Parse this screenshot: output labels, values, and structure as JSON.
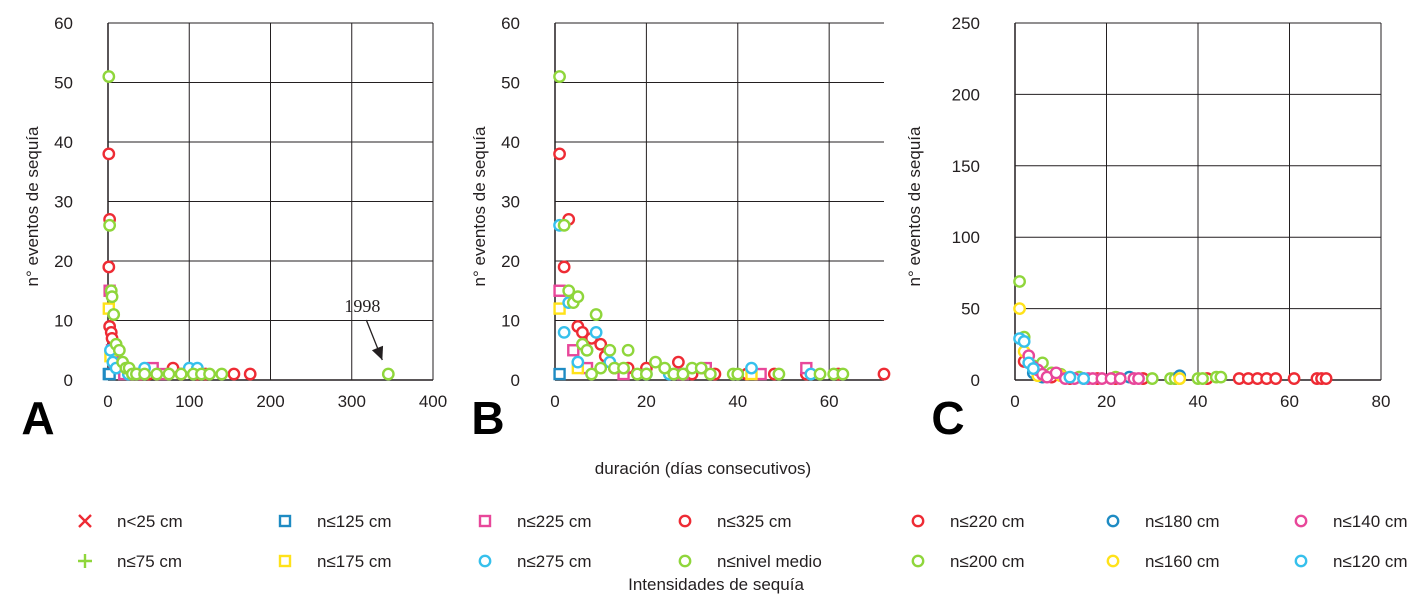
{
  "figure": {
    "x_axis_title": "duración (días consecutivos)",
    "legend_title": "Intensidades de sequía"
  },
  "legend": [
    {
      "label": "n<25 cm",
      "marker": "x",
      "color": "#ee2b34"
    },
    {
      "label": "n≤75 cm",
      "marker": "plus",
      "color": "#8fd63b"
    },
    {
      "label": "n≤125 cm",
      "marker": "square",
      "color": "#1e8bc3"
    },
    {
      "label": "n≤175 cm",
      "marker": "square",
      "color": "#ffe21a"
    },
    {
      "label": "n≤225 cm",
      "marker": "square",
      "color": "#e8479a"
    },
    {
      "label": "n≤275 cm",
      "marker": "circle",
      "color": "#36c0ec"
    },
    {
      "label": "n≤325 cm",
      "marker": "circle",
      "color": "#ee2b34"
    },
    {
      "label": "n≤nivel medio",
      "marker": "circle",
      "color": "#8fd63b"
    },
    {
      "label": "n≤220 cm",
      "marker": "circle",
      "color": "#ee2b34"
    },
    {
      "label": "n≤200 cm",
      "marker": "circle",
      "color": "#8fd63b"
    },
    {
      "label": "n≤180 cm",
      "marker": "circle",
      "color": "#1e8bc3"
    },
    {
      "label": "n≤160 cm",
      "marker": "circle",
      "color": "#ffe21a"
    },
    {
      "label": "n≤140 cm",
      "marker": "circle",
      "color": "#e8479a"
    },
    {
      "label": "n≤120 cm",
      "marker": "circle",
      "color": "#36c0ec"
    }
  ],
  "chart_data": [
    {
      "type": "scatter",
      "panel": "A",
      "xlabel": "",
      "ylabel": "n° eventos de sequía",
      "xlim": [
        0,
        400
      ],
      "ylim": [
        0,
        60
      ],
      "xticks": [
        0,
        100,
        200,
        300,
        400
      ],
      "yticks": [
        0,
        10,
        20,
        30,
        40,
        50,
        60
      ],
      "grid": true,
      "annotations": [
        {
          "text": "1998",
          "x": 345,
          "y": 1
        }
      ],
      "series": [
        {
          "name": "n≤325 cm",
          "marker": "circle",
          "color": "#ee2b34",
          "points": [
            [
              1,
              38
            ],
            [
              2,
              27
            ],
            [
              1,
              19
            ],
            [
              2,
              9
            ],
            [
              4,
              8
            ],
            [
              5,
              7
            ],
            [
              6,
              5
            ],
            [
              8,
              4
            ],
            [
              10,
              3
            ],
            [
              15,
              2
            ],
            [
              20,
              2
            ],
            [
              25,
              2
            ],
            [
              30,
              1
            ],
            [
              40,
              1
            ],
            [
              50,
              1
            ],
            [
              60,
              1
            ],
            [
              80,
              2
            ],
            [
              90,
              1
            ],
            [
              110,
              1
            ],
            [
              120,
              1
            ],
            [
              155,
              1
            ],
            [
              175,
              1
            ]
          ]
        },
        {
          "name": "n≤225 cm",
          "marker": "square",
          "color": "#e8479a",
          "points": [
            [
              2,
              15
            ],
            [
              5,
              5
            ],
            [
              8,
              3
            ],
            [
              12,
              2
            ],
            [
              20,
              1
            ],
            [
              35,
              1
            ],
            [
              55,
              2
            ],
            [
              70,
              1
            ]
          ]
        },
        {
          "name": "n≤125 cm",
          "marker": "square",
          "color": "#1e8bc3",
          "points": [
            [
              1,
              1
            ],
            [
              2,
              1
            ]
          ]
        },
        {
          "name": "n≤175 cm",
          "marker": "square",
          "color": "#ffe21a",
          "points": [
            [
              1,
              12
            ],
            [
              3,
              4
            ]
          ]
        },
        {
          "name": "n≤275 cm",
          "marker": "circle",
          "color": "#36c0ec",
          "points": [
            [
              3,
              5
            ],
            [
              6,
              3
            ],
            [
              10,
              2
            ],
            [
              25,
              1
            ],
            [
              45,
              2
            ],
            [
              100,
              2
            ],
            [
              110,
              2
            ]
          ]
        },
        {
          "name": "n≤nivel medio",
          "marker": "circle",
          "color": "#8fd63b",
          "points": [
            [
              1,
              51
            ],
            [
              2,
              26
            ],
            [
              4,
              15
            ],
            [
              5,
              14
            ],
            [
              7,
              11
            ],
            [
              10,
              6
            ],
            [
              14,
              5
            ],
            [
              18,
              3
            ],
            [
              22,
              2
            ],
            [
              26,
              2
            ],
            [
              30,
              1
            ],
            [
              35,
              1
            ],
            [
              45,
              1
            ],
            [
              60,
              1
            ],
            [
              75,
              1
            ],
            [
              90,
              1
            ],
            [
              105,
              1
            ],
            [
              115,
              1
            ],
            [
              125,
              1
            ],
            [
              140,
              1
            ],
            [
              345,
              1
            ]
          ]
        }
      ]
    },
    {
      "type": "scatter",
      "panel": "B",
      "xlabel": "",
      "ylabel": "n° eventos de sequía",
      "xlim": [
        0,
        72
      ],
      "ylim": [
        0,
        60
      ],
      "xticks": [
        0,
        20,
        40,
        60
      ],
      "yticks": [
        0,
        10,
        20,
        30,
        40,
        50,
        60
      ],
      "grid": true,
      "series": [
        {
          "name": "n≤325 cm",
          "marker": "circle",
          "color": "#ee2b34",
          "points": [
            [
              1,
              38
            ],
            [
              3,
              27
            ],
            [
              2,
              19
            ],
            [
              5,
              9
            ],
            [
              6,
              8
            ],
            [
              8,
              7
            ],
            [
              10,
              6
            ],
            [
              11,
              4
            ],
            [
              13,
              2
            ],
            [
              16,
              2
            ],
            [
              20,
              2
            ],
            [
              27,
              3
            ],
            [
              30,
              1
            ],
            [
              35,
              1
            ],
            [
              42,
              1
            ],
            [
              48,
              1
            ],
            [
              55,
              1
            ],
            [
              62,
              1
            ],
            [
              72,
              1
            ]
          ]
        },
        {
          "name": "n≤225 cm",
          "marker": "square",
          "color": "#e8479a",
          "points": [
            [
              1,
              15
            ],
            [
              4,
              5
            ],
            [
              7,
              2
            ],
            [
              15,
              1
            ],
            [
              28,
              1
            ],
            [
              33,
              2
            ],
            [
              45,
              1
            ],
            [
              55,
              2
            ]
          ]
        },
        {
          "name": "n≤125 cm",
          "marker": "square",
          "color": "#1e8bc3",
          "points": [
            [
              1,
              1
            ]
          ]
        },
        {
          "name": "n≤175 cm",
          "marker": "square",
          "color": "#ffe21a",
          "points": [
            [
              1,
              12
            ],
            [
              5,
              2
            ],
            [
              43,
              1
            ]
          ]
        },
        {
          "name": "n≤275 cm",
          "marker": "circle",
          "color": "#36c0ec",
          "points": [
            [
              1,
              26
            ],
            [
              2,
              8
            ],
            [
              3,
              13
            ],
            [
              5,
              3
            ],
            [
              7,
              5
            ],
            [
              9,
              8
            ],
            [
              12,
              3
            ],
            [
              20,
              1
            ],
            [
              25,
              1
            ],
            [
              43,
              2
            ],
            [
              56,
              1
            ]
          ]
        },
        {
          "name": "n≤nivel medio",
          "marker": "circle",
          "color": "#8fd63b",
          "points": [
            [
              1,
              51
            ],
            [
              2,
              26
            ],
            [
              3,
              15
            ],
            [
              4,
              13
            ],
            [
              5,
              14
            ],
            [
              6,
              6
            ],
            [
              7,
              5
            ],
            [
              8,
              1
            ],
            [
              9,
              11
            ],
            [
              10,
              2
            ],
            [
              12,
              5
            ],
            [
              13,
              2
            ],
            [
              15,
              2
            ],
            [
              16,
              5
            ],
            [
              18,
              1
            ],
            [
              20,
              1
            ],
            [
              22,
              3
            ],
            [
              24,
              2
            ],
            [
              26,
              1
            ],
            [
              28,
              1
            ],
            [
              30,
              2
            ],
            [
              32,
              2
            ],
            [
              34,
              1
            ],
            [
              39,
              1
            ],
            [
              40,
              1
            ],
            [
              49,
              1
            ],
            [
              58,
              1
            ],
            [
              61,
              1
            ],
            [
              63,
              1
            ]
          ]
        }
      ]
    },
    {
      "type": "scatter",
      "panel": "C",
      "xlabel": "",
      "ylabel": "n° eventos de sequía",
      "xlim": [
        0,
        80
      ],
      "ylim": [
        0,
        250
      ],
      "xticks": [
        0,
        20,
        40,
        60,
        80
      ],
      "yticks": [
        0,
        50,
        100,
        150,
        200,
        250
      ],
      "grid": true,
      "series": [
        {
          "name": "n≤220 cm",
          "marker": "circle",
          "color": "#ee2b34",
          "points": [
            [
              2,
              13
            ],
            [
              5,
              5
            ],
            [
              8,
              2
            ],
            [
              12,
              1
            ],
            [
              18,
              1
            ],
            [
              22,
              1
            ],
            [
              28,
              1
            ],
            [
              35,
              1
            ],
            [
              42,
              1
            ],
            [
              49,
              1
            ],
            [
              51,
              1
            ],
            [
              53,
              1
            ],
            [
              55,
              1
            ],
            [
              57,
              1
            ],
            [
              61,
              1
            ],
            [
              66,
              1
            ],
            [
              67,
              1
            ],
            [
              68,
              1
            ]
          ]
        },
        {
          "name": "n≤200 cm",
          "marker": "circle",
          "color": "#8fd63b",
          "points": [
            [
              1,
              69
            ],
            [
              2,
              30
            ],
            [
              4,
              10
            ],
            [
              6,
              12
            ],
            [
              8,
              5
            ],
            [
              10,
              4
            ],
            [
              14,
              2
            ],
            [
              22,
              2
            ],
            [
              30,
              1
            ],
            [
              34,
              1
            ],
            [
              35,
              1
            ],
            [
              36,
              1
            ],
            [
              40,
              1
            ],
            [
              41,
              1
            ],
            [
              44,
              2
            ],
            [
              45,
              2
            ]
          ]
        },
        {
          "name": "n≤180 cm",
          "marker": "circle",
          "color": "#1e8bc3",
          "points": [
            [
              4,
              5
            ],
            [
              6,
              2
            ],
            [
              25,
              2
            ],
            [
              36,
              3
            ]
          ]
        },
        {
          "name": "n≤160 cm",
          "marker": "circle",
          "color": "#ffe21a",
          "points": [
            [
              1,
              50
            ],
            [
              2,
              20
            ],
            [
              5,
              3
            ],
            [
              10,
              3
            ],
            [
              36,
              1
            ]
          ]
        },
        {
          "name": "n≤140 cm",
          "marker": "circle",
          "color": "#e8479a",
          "points": [
            [
              3,
              17
            ],
            [
              4,
              9
            ],
            [
              5,
              7
            ],
            [
              6,
              4
            ],
            [
              7,
              2
            ],
            [
              9,
              5
            ],
            [
              11,
              1
            ],
            [
              13,
              1
            ],
            [
              15,
              1
            ],
            [
              16,
              1
            ],
            [
              17,
              1
            ],
            [
              19,
              1
            ],
            [
              21,
              1
            ],
            [
              23,
              1
            ],
            [
              26,
              1
            ],
            [
              27,
              1
            ]
          ]
        },
        {
          "name": "n≤120 cm",
          "marker": "circle",
          "color": "#36c0ec",
          "points": [
            [
              1,
              29
            ],
            [
              2,
              27
            ],
            [
              3,
              12
            ],
            [
              4,
              8
            ],
            [
              12,
              2
            ],
            [
              15,
              1
            ]
          ]
        }
      ]
    }
  ]
}
